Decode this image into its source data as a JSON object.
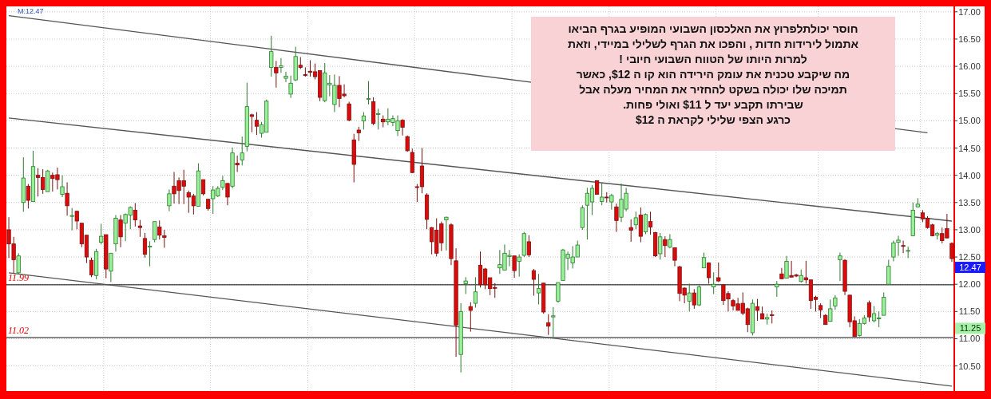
{
  "chart_data": {
    "type": "candlestick",
    "categories": [
      null,
      null,
      null,
      null,
      null,
      null,
      null,
      null,
      null,
      null,
      null,
      null,
      null,
      null,
      null,
      null,
      null,
      null,
      null,
      null,
      null,
      null,
      null,
      null,
      null,
      null,
      null,
      null,
      null,
      null,
      null,
      null,
      null,
      null,
      null,
      null,
      null,
      null,
      null,
      null,
      null,
      null,
      null,
      null,
      null,
      null,
      null,
      null,
      null,
      null,
      null,
      null,
      null,
      null,
      null,
      null,
      null,
      null,
      null,
      null,
      null,
      null,
      null,
      null,
      null,
      null,
      null,
      null,
      null,
      null,
      null,
      null,
      null,
      null,
      null,
      null,
      null,
      null,
      null,
      null,
      null,
      null,
      null,
      null,
      null,
      null,
      null,
      null,
      null,
      null,
      null,
      null,
      null,
      null,
      null,
      null,
      null,
      null,
      null,
      null,
      null,
      null,
      null,
      null,
      null,
      null,
      null,
      null,
      null,
      null,
      null,
      null,
      null,
      null,
      null,
      null,
      null,
      null,
      null,
      null,
      null,
      null,
      null,
      null,
      null,
      null,
      null,
      null,
      null,
      null,
      null,
      null,
      null,
      null,
      null,
      null,
      null,
      null,
      null,
      null,
      null,
      null,
      null,
      null,
      null,
      null,
      null,
      null,
      null,
      null,
      null,
      null,
      null,
      null,
      null,
      null,
      null,
      null,
      null,
      null,
      null,
      null,
      null,
      null,
      null,
      null,
      null,
      null,
      null,
      null,
      null,
      null,
      null,
      null,
      null,
      null,
      null,
      null,
      null,
      null,
      null,
      null,
      null,
      null,
      null,
      null,
      null,
      null,
      null,
      null,
      null,
      null,
      null,
      null,
      null
    ],
    "ohlc": [
      [
        13.0,
        13.23,
        12.48,
        12.74
      ],
      [
        12.74,
        12.87,
        12.2,
        12.45
      ],
      [
        12.21,
        12.57,
        12.18,
        12.52
      ],
      [
        13.5,
        14.33,
        13.33,
        13.95
      ],
      [
        13.8,
        13.84,
        13.39,
        13.54
      ],
      [
        13.52,
        14.45,
        13.52,
        14.16
      ],
      [
        14.0,
        14.13,
        13.61,
        13.96
      ],
      [
        13.96,
        14.11,
        13.66,
        13.74
      ],
      [
        13.7,
        14.1,
        13.7,
        14.08
      ],
      [
        14.0,
        14.05,
        13.7,
        13.94
      ],
      [
        14.01,
        14.14,
        13.74,
        13.92
      ],
      [
        13.65,
        14.0,
        13.6,
        13.79
      ],
      [
        13.67,
        13.87,
        13.26,
        13.44
      ],
      [
        13.25,
        13.4,
        12.99,
        13.26
      ],
      [
        13.34,
        13.34,
        13.01,
        13.16
      ],
      [
        13.12,
        13.12,
        12.68,
        12.74
      ],
      [
        12.9,
        12.9,
        12.39,
        12.5
      ],
      [
        12.44,
        12.49,
        12.13,
        12.17
      ],
      [
        12.16,
        12.65,
        12.09,
        12.6
      ],
      [
        12.77,
        13.11,
        12.73,
        12.88
      ],
      [
        12.91,
        12.91,
        12.11,
        12.28
      ],
      [
        12.24,
        12.57,
        12.04,
        12.57
      ],
      [
        12.74,
        13.27,
        12.6,
        13.21
      ],
      [
        13.18,
        13.27,
        12.68,
        12.87
      ],
      [
        13.12,
        13.3,
        12.79,
        13.28
      ],
      [
        13.27,
        13.43,
        13.01,
        13.41
      ],
      [
        13.36,
        13.49,
        13.06,
        13.18
      ],
      [
        13.07,
        13.18,
        12.87,
        13.04
      ],
      [
        12.84,
        12.94,
        12.49,
        12.55
      ],
      [
        12.69,
        12.79,
        12.33,
        12.7
      ],
      [
        12.82,
        13.15,
        12.77,
        13.15
      ],
      [
        13.05,
        13.17,
        12.82,
        12.9
      ],
      [
        12.89,
        13.0,
        12.67,
        12.86
      ],
      [
        13.44,
        13.74,
        13.34,
        13.66
      ],
      [
        13.8,
        14.06,
        13.48,
        13.66
      ],
      [
        13.9,
        13.96,
        13.47,
        13.72
      ],
      [
        13.9,
        14.1,
        13.47,
        13.8
      ],
      [
        13.68,
        13.72,
        13.31,
        13.6
      ],
      [
        13.62,
        13.66,
        13.28,
        13.44
      ],
      [
        13.43,
        14.22,
        13.43,
        14.08
      ],
      [
        13.92,
        13.92,
        13.63,
        13.66
      ],
      [
        13.56,
        13.56,
        13.35,
        13.39
      ],
      [
        13.57,
        13.8,
        13.29,
        13.73
      ],
      [
        13.62,
        13.8,
        13.6,
        13.76
      ],
      [
        13.78,
        13.99,
        13.73,
        13.9
      ],
      [
        13.85,
        13.86,
        13.45,
        13.6
      ],
      [
        13.8,
        14.51,
        13.76,
        14.41
      ],
      [
        14.22,
        14.36,
        14.06,
        14.19
      ],
      [
        14.28,
        14.71,
        14.18,
        14.41
      ],
      [
        14.53,
        15.7,
        14.44,
        15.26
      ],
      [
        15.11,
        15.13,
        14.79,
        15.08
      ],
      [
        15.01,
        15.16,
        14.74,
        14.9
      ],
      [
        14.77,
        14.98,
        14.69,
        14.93
      ],
      [
        14.79,
        15.39,
        14.79,
        15.36
      ],
      [
        15.98,
        16.56,
        15.81,
        16.27
      ],
      [
        15.98,
        16.1,
        15.61,
        15.88
      ],
      [
        15.98,
        16.15,
        15.88,
        16.01
      ],
      [
        15.78,
        15.9,
        15.71,
        15.82
      ],
      [
        15.49,
        15.83,
        15.42,
        15.69
      ],
      [
        15.75,
        16.36,
        15.73,
        16.18
      ],
      [
        16.02,
        16.17,
        15.95,
        15.98
      ],
      [
        15.85,
        15.98,
        15.81,
        15.83
      ],
      [
        15.91,
        16.11,
        15.81,
        15.89
      ],
      [
        15.9,
        16.05,
        15.76,
        15.81
      ],
      [
        15.92,
        15.92,
        15.36,
        15.43
      ],
      [
        15.37,
        16.06,
        15.34,
        15.88
      ],
      [
        15.66,
        15.84,
        15.45,
        15.69
      ],
      [
        15.3,
        15.85,
        15.16,
        15.65
      ],
      [
        15.65,
        15.82,
        15.25,
        15.41
      ],
      [
        15.49,
        15.67,
        15.43,
        15.46
      ],
      [
        15.31,
        15.35,
        14.99,
        15.01
      ],
      [
        14.65,
        14.76,
        13.87,
        14.2
      ],
      [
        14.83,
        14.89,
        14.63,
        14.78
      ],
      [
        15.0,
        15.16,
        14.84,
        15.09
      ],
      [
        15.4,
        15.73,
        15.3,
        15.41
      ],
      [
        15.35,
        15.43,
        14.92,
        14.95
      ],
      [
        15.12,
        15.22,
        14.84,
        15.13
      ],
      [
        15.03,
        15.1,
        14.88,
        14.98
      ],
      [
        14.98,
        15.23,
        14.92,
        15.03
      ],
      [
        14.97,
        15.1,
        14.9,
        15.04
      ],
      [
        14.82,
        15.1,
        14.72,
        15.0
      ],
      [
        15.01,
        15.03,
        14.73,
        14.88
      ],
      [
        14.71,
        14.73,
        14.43,
        14.45
      ],
      [
        14.42,
        14.49,
        14.04,
        14.05
      ],
      [
        13.79,
        13.84,
        13.51,
        13.78
      ],
      [
        14.17,
        14.5,
        13.67,
        13.79
      ],
      [
        13.64,
        13.67,
        13.01,
        13.19
      ],
      [
        13.04,
        13.05,
        12.55,
        12.78
      ],
      [
        12.99,
        13.21,
        12.51,
        12.57
      ],
      [
        13.11,
        13.15,
        12.61,
        12.76
      ],
      [
        13.18,
        13.24,
        12.62,
        13.23
      ],
      [
        13.09,
        13.12,
        12.35,
        12.47
      ],
      [
        12.43,
        12.66,
        10.67,
        11.25
      ],
      [
        10.71,
        11.65,
        10.38,
        11.5
      ],
      [
        12.01,
        12.13,
        11.82,
        12.06
      ],
      [
        11.59,
        11.67,
        11.13,
        11.52
      ],
      [
        11.65,
        12.13,
        11.57,
        11.86
      ],
      [
        12.35,
        12.6,
        11.94,
        11.99
      ],
      [
        12.28,
        12.3,
        11.91,
        11.99
      ],
      [
        12.12,
        12.12,
        11.8,
        11.92
      ],
      [
        11.94,
        12.02,
        11.75,
        11.93
      ],
      [
        12.3,
        12.63,
        12.19,
        12.36
      ],
      [
        12.26,
        12.73,
        12.26,
        12.57
      ],
      [
        12.51,
        12.63,
        12.33,
        12.53
      ],
      [
        12.52,
        12.52,
        12.12,
        12.25
      ],
      [
        12.42,
        12.55,
        12.14,
        12.5
      ],
      [
        12.53,
        12.96,
        12.5,
        12.93
      ],
      [
        12.78,
        12.9,
        12.5,
        12.54
      ],
      [
        12.25,
        12.28,
        11.79,
        12.09
      ],
      [
        11.84,
        12.19,
        11.63,
        11.92
      ],
      [
        12.02,
        12.02,
        11.46,
        11.49
      ],
      [
        11.29,
        11.45,
        11.07,
        11.23
      ],
      [
        11.4,
        11.58,
        11.03,
        11.42
      ],
      [
        11.69,
        12.03,
        11.66,
        12.03
      ],
      [
        12.07,
        12.65,
        12.07,
        12.63
      ],
      [
        12.48,
        12.6,
        12.26,
        12.55
      ],
      [
        12.39,
        12.7,
        12.29,
        12.5
      ],
      [
        12.5,
        12.8,
        12.5,
        12.72
      ],
      [
        13.04,
        13.45,
        13.0,
        13.4
      ],
      [
        13.45,
        13.77,
        12.82,
        13.67
      ],
      [
        13.51,
        13.82,
        13.27,
        13.76
      ],
      [
        13.9,
        13.91,
        13.65,
        13.65
      ],
      [
        13.52,
        13.86,
        13.45,
        13.6
      ],
      [
        13.6,
        13.69,
        13.5,
        13.59
      ],
      [
        13.51,
        13.66,
        13.37,
        13.63
      ],
      [
        13.42,
        13.48,
        12.96,
        13.17
      ],
      [
        13.23,
        13.85,
        13.14,
        13.56
      ],
      [
        13.38,
        13.77,
        13.34,
        13.67
      ],
      [
        13.04,
        13.19,
        12.78,
        12.99
      ],
      [
        13.09,
        13.33,
        13.01,
        13.22
      ],
      [
        13.27,
        13.41,
        12.77,
        12.88
      ],
      [
        12.96,
        13.3,
        12.92,
        13.28
      ],
      [
        13.15,
        13.33,
        12.91,
        13.05
      ],
      [
        12.95,
        12.96,
        12.5,
        12.52
      ],
      [
        12.56,
        12.94,
        12.45,
        12.87
      ],
      [
        12.82,
        12.88,
        12.5,
        12.71
      ],
      [
        12.68,
        12.92,
        12.66,
        12.82
      ],
      [
        12.67,
        12.67,
        12.33,
        12.44
      ],
      [
        12.32,
        12.34,
        11.69,
        11.83
      ],
      [
        11.93,
        11.94,
        11.65,
        11.8
      ],
      [
        11.69,
        12.01,
        11.5,
        11.84
      ],
      [
        11.84,
        11.91,
        11.55,
        11.62
      ],
      [
        11.62,
        11.98,
        11.6,
        11.95
      ],
      [
        12.3,
        12.58,
        12.3,
        12.49
      ],
      [
        12.39,
        12.4,
        12.01,
        12.12
      ],
      [
        11.95,
        12.22,
        11.82,
        12.0
      ],
      [
        12.12,
        12.4,
        12.04,
        12.06
      ],
      [
        11.99,
        12.0,
        11.62,
        11.7
      ],
      [
        11.83,
        11.87,
        11.5,
        11.73
      ],
      [
        11.7,
        11.73,
        11.52,
        11.6
      ],
      [
        11.64,
        11.75,
        11.52,
        11.52
      ],
      [
        11.65,
        11.85,
        11.43,
        11.47
      ],
      [
        11.55,
        11.57,
        11.12,
        11.26
      ],
      [
        11.11,
        11.72,
        11.06,
        11.65
      ],
      [
        11.59,
        11.73,
        11.33,
        11.52
      ],
      [
        11.46,
        11.59,
        11.36,
        11.36
      ],
      [
        11.36,
        11.46,
        11.26,
        11.39
      ],
      [
        11.44,
        11.52,
        11.28,
        11.43
      ],
      [
        11.95,
        12.06,
        11.77,
        12.0
      ],
      [
        12.19,
        12.3,
        12.1,
        12.1
      ],
      [
        12.11,
        12.52,
        12.11,
        12.42
      ],
      [
        12.16,
        12.43,
        12.13,
        12.13
      ],
      [
        12.17,
        12.19,
        12.13,
        12.15
      ],
      [
        12.05,
        12.27,
        12.03,
        12.16
      ],
      [
        12.12,
        12.43,
        12.01,
        12.08
      ],
      [
        12.08,
        12.08,
        11.55,
        11.7
      ],
      [
        11.76,
        11.79,
        11.5,
        11.72
      ],
      [
        11.61,
        11.65,
        11.38,
        11.53
      ],
      [
        11.43,
        11.45,
        11.26,
        11.26
      ],
      [
        11.32,
        11.72,
        11.31,
        11.55
      ],
      [
        11.6,
        11.8,
        11.53,
        11.75
      ],
      [
        12.45,
        12.58,
        12.06,
        12.52
      ],
      [
        12.44,
        12.46,
        11.8,
        11.87
      ],
      [
        11.8,
        11.8,
        11.21,
        11.31
      ],
      [
        11.33,
        11.41,
        11.04,
        11.04
      ],
      [
        11.06,
        11.36,
        11.04,
        11.28
      ],
      [
        11.28,
        11.43,
        11.26,
        11.38
      ],
      [
        11.66,
        11.7,
        11.31,
        11.4
      ],
      [
        11.33,
        11.6,
        11.3,
        11.46
      ],
      [
        11.37,
        11.5,
        11.21,
        11.38
      ],
      [
        11.43,
        11.85,
        11.43,
        11.76
      ],
      [
        12.0,
        12.45,
        12.0,
        12.33
      ],
      [
        12.5,
        12.8,
        12.42,
        12.76
      ],
      [
        12.77,
        12.89,
        12.52,
        12.81
      ],
      [
        12.71,
        12.8,
        12.57,
        12.7
      ],
      [
        12.62,
        12.69,
        12.48,
        12.62
      ],
      [
        12.89,
        13.5,
        12.89,
        13.36
      ],
      [
        13.42,
        13.58,
        13.42,
        13.47
      ],
      [
        13.31,
        13.36,
        13.14,
        13.2
      ],
      [
        13.21,
        13.25,
        13.02,
        13.04
      ],
      [
        13.09,
        13.11,
        12.88,
        12.89
      ],
      [
        12.9,
        12.96,
        12.82,
        12.93
      ],
      [
        12.93,
        13.04,
        12.75,
        12.8
      ],
      [
        13.02,
        13.29,
        12.84,
        12.85
      ],
      [
        12.75,
        12.77,
        12.41,
        12.47
      ]
    ],
    "series": [
      {
        "type": "line",
        "color": "#555555",
        "values": [
          16.93,
          null,
          null,
          null,
          null,
          null,
          null,
          null,
          null,
          null,
          null,
          null,
          null,
          null,
          null,
          null,
          null,
          null,
          null,
          null,
          null,
          null,
          null,
          null,
          null,
          null,
          null,
          null,
          null,
          null,
          null,
          null,
          null,
          null,
          null,
          null,
          null,
          null,
          null,
          null,
          null,
          null,
          null,
          null,
          null,
          null,
          null,
          null,
          null,
          null,
          null,
          null,
          null,
          null,
          null,
          null,
          null,
          null,
          null,
          null,
          null,
          null,
          null,
          null,
          null,
          null,
          null,
          null,
          null,
          null,
          null,
          null,
          null,
          null,
          null,
          null,
          null,
          null,
          null,
          null,
          null,
          null,
          null,
          null,
          null,
          null,
          null,
          null,
          null,
          null,
          null,
          null,
          null,
          null,
          null,
          null,
          null,
          null,
          null,
          null,
          null,
          null,
          null,
          null,
          null,
          null,
          null,
          null,
          null,
          null,
          null,
          null,
          null,
          null,
          null,
          null,
          null,
          null,
          null,
          null,
          null,
          null,
          null,
          null,
          null,
          null,
          null,
          null,
          null,
          null,
          null,
          null,
          null,
          null,
          null,
          null,
          null,
          null,
          null,
          null,
          null,
          null,
          null,
          null,
          null,
          null,
          null,
          null,
          null,
          null,
          null,
          null,
          null,
          null,
          null,
          null,
          null,
          null,
          null,
          null,
          null,
          null,
          null,
          null,
          null,
          null,
          null,
          null,
          null,
          null,
          null,
          null,
          null,
          null,
          null,
          null,
          null,
          null,
          null,
          null,
          null,
          null,
          null,
          null,
          null,
          null,
          null,
          null,
          null,
          14.78,
          null,
          null,
          null,
          null,
          null
        ]
      },
      {
        "type": "line",
        "color": "#555555",
        "values": [
          15.05,
          null,
          null,
          null,
          null,
          null,
          null,
          null,
          null,
          null,
          null,
          null,
          null,
          null,
          null,
          null,
          null,
          null,
          null,
          null,
          null,
          null,
          null,
          null,
          null,
          null,
          null,
          null,
          null,
          null,
          null,
          null,
          null,
          null,
          null,
          null,
          null,
          null,
          null,
          null,
          null,
          null,
          null,
          null,
          null,
          null,
          null,
          null,
          null,
          null,
          null,
          null,
          null,
          null,
          null,
          null,
          null,
          null,
          null,
          null,
          null,
          null,
          null,
          null,
          null,
          null,
          null,
          null,
          null,
          null,
          null,
          null,
          null,
          null,
          null,
          null,
          null,
          null,
          null,
          null,
          null,
          null,
          null,
          null,
          null,
          null,
          null,
          null,
          null,
          null,
          null,
          null,
          null,
          null,
          null,
          null,
          null,
          null,
          null,
          null,
          null,
          null,
          null,
          null,
          null,
          null,
          null,
          null,
          null,
          null,
          null,
          null,
          null,
          null,
          null,
          null,
          null,
          null,
          null,
          null,
          null,
          null,
          null,
          null,
          null,
          null,
          null,
          null,
          null,
          null,
          null,
          null,
          null,
          null,
          null,
          null,
          null,
          null,
          null,
          null,
          null,
          null,
          null,
          null,
          null,
          null,
          null,
          null,
          null,
          null,
          null,
          null,
          null,
          null,
          null,
          null,
          null,
          null,
          null,
          null,
          null,
          null,
          null,
          null,
          null,
          null,
          null,
          null,
          null,
          null,
          null,
          null,
          null,
          null,
          null,
          null,
          null,
          null,
          null,
          null,
          null,
          null,
          null,
          null,
          null,
          null,
          null,
          null,
          null,
          null,
          null,
          null,
          null,
          null,
          13.16
        ]
      },
      {
        "type": "line",
        "color": "#555555",
        "values": [
          12.21,
          null,
          null,
          null,
          null,
          null,
          null,
          null,
          null,
          null,
          null,
          null,
          null,
          null,
          null,
          null,
          null,
          null,
          null,
          null,
          null,
          null,
          null,
          null,
          null,
          null,
          null,
          null,
          null,
          null,
          null,
          null,
          null,
          null,
          null,
          null,
          null,
          null,
          null,
          null,
          null,
          null,
          null,
          null,
          null,
          null,
          null,
          null,
          null,
          null,
          null,
          null,
          null,
          null,
          null,
          null,
          null,
          null,
          null,
          null,
          null,
          null,
          null,
          null,
          null,
          null,
          null,
          null,
          null,
          null,
          null,
          null,
          null,
          null,
          null,
          null,
          null,
          null,
          null,
          null,
          null,
          null,
          null,
          null,
          null,
          null,
          null,
          null,
          null,
          null,
          null,
          null,
          null,
          null,
          null,
          null,
          null,
          null,
          null,
          null,
          null,
          null,
          null,
          null,
          null,
          null,
          null,
          null,
          null,
          null,
          null,
          null,
          null,
          null,
          null,
          null,
          null,
          null,
          null,
          null,
          null,
          null,
          null,
          null,
          null,
          null,
          null,
          null,
          null,
          null,
          null,
          null,
          null,
          null,
          null,
          null,
          null,
          null,
          null,
          null,
          null,
          null,
          null,
          null,
          null,
          null,
          null,
          null,
          null,
          null,
          null,
          null,
          null,
          null,
          null,
          null,
          null,
          null,
          null,
          null,
          null,
          null,
          null,
          null,
          null,
          null,
          null,
          null,
          null,
          null,
          null,
          null,
          null,
          null,
          null,
          null,
          null,
          null,
          null,
          null,
          null,
          null,
          null,
          null,
          null,
          null,
          null,
          null,
          null,
          null,
          null,
          null,
          null,
          null,
          10.13
        ]
      }
    ],
    "ylim": [
      10.04,
      17.1
    ],
    "yticks": [
      {
        "value": 10.5,
        "label": "10.50"
      },
      {
        "value": 11,
        "label": "11.00"
      },
      {
        "value": 11.5,
        "label": "11.50"
      },
      {
        "value": 12,
        "label": "12.00"
      },
      {
        "value": 12.5,
        "label": "12.50"
      },
      {
        "value": 13,
        "label": "13.00"
      },
      {
        "value": 13.5,
        "label": "13.50"
      },
      {
        "value": 14,
        "label": "14.00"
      },
      {
        "value": 14.5,
        "label": "14.50"
      },
      {
        "value": 15,
        "label": "15.00"
      },
      {
        "value": 15.5,
        "label": "15.50"
      },
      {
        "value": 16,
        "label": "16.00"
      },
      {
        "value": 16.5,
        "label": "16.50"
      },
      {
        "value": 17,
        "label": "17.00"
      }
    ],
    "ref_lines": [
      {
        "axis": "y",
        "value": 11.99,
        "label": "11.99",
        "color": "#000000"
      },
      {
        "axis": "y",
        "value": 11.02,
        "label": "11.02",
        "color": "#888888"
      }
    ],
    "annotations": [
      "M:12.47",
      "חוסר יכולתלפרוץ את האלכסון השבועי המופיע בגרף הביאו\nאתמול לירידות חדות , והפכו את הגרף לשלילי במיידי, וזאת\nלמרות היותו של הטווח השבועי חיובי !\nמה שיקבע טכנית את עומק הירידה הוא קו ה $12, כאשר\nתמיכה שלו יכולה בשקט להחזיר את המחיר מעלה אבל\nשבירתו תקבע יעד ל $11 ואולי פחות.\nכרגע הצפי שלילי לקראת ה $12",
      "12.47",
      "11.25"
    ],
    "grid": true
  }
}
